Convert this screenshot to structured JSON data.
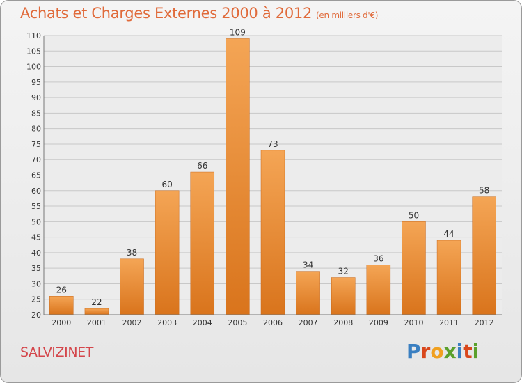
{
  "header": {
    "title": "Achats et Charges Externes 2000 à 2012",
    "unit": "(en milliers d'€)"
  },
  "footer": {
    "place": "SALVIZINET",
    "logo_text": "Proxiti"
  },
  "colors": {
    "title": "#e06a3a",
    "place": "#d4464b",
    "bar_top": "#f4a555",
    "bar_bottom": "#d9741c",
    "grid": "#c8c8c8",
    "axis_text": "#333333",
    "logo_letters": [
      "#3a7fc1",
      "#d9471c",
      "#f0a020",
      "#5aa02c",
      "#3a7fc1",
      "#d9471c",
      "#5aa02c"
    ]
  },
  "chart_data": {
    "type": "bar",
    "title": "Achats et Charges Externes 2000 à 2012",
    "subtitle": "(en milliers d'€)",
    "categories": [
      "2000",
      "2001",
      "2002",
      "2003",
      "2004",
      "2005",
      "2006",
      "2007",
      "2008",
      "2009",
      "2010",
      "2011",
      "2012"
    ],
    "values": [
      26,
      22,
      38,
      60,
      66,
      109,
      73,
      34,
      32,
      36,
      50,
      44,
      58
    ],
    "ylim": [
      20,
      110
    ],
    "yticks": [
      20,
      25,
      30,
      35,
      40,
      45,
      50,
      55,
      60,
      65,
      70,
      75,
      80,
      85,
      90,
      95,
      100,
      105,
      110
    ],
    "grid": true,
    "legend": "none"
  }
}
